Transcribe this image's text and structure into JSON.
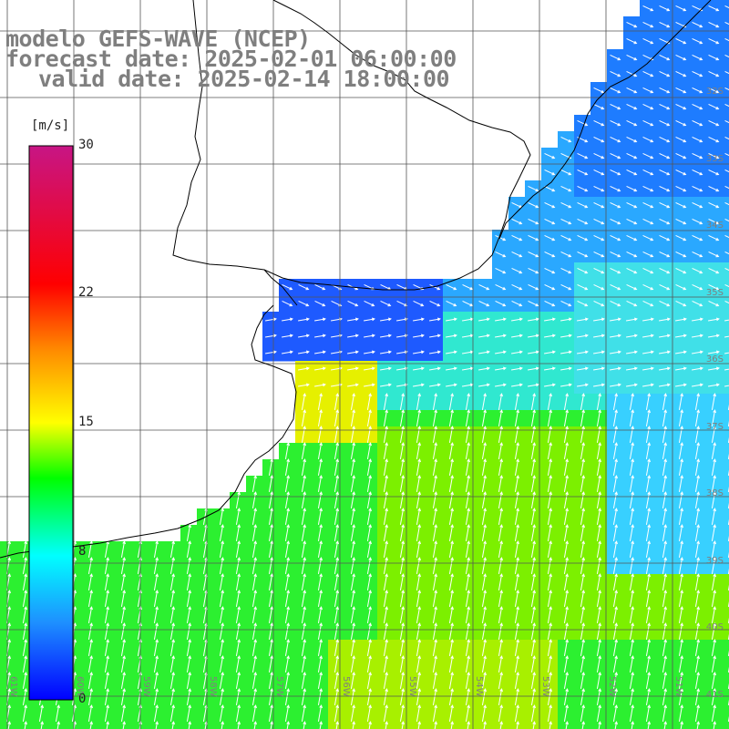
{
  "title": {
    "line1": "modelo GEFS-WAVE (NCEP)",
    "line2": "forecast date: 2025-02-01 06:00:00",
    "line3": "valid date: 2025-02-14 18:00:00"
  },
  "colorbar": {
    "unit": "[m/s]",
    "ticks": [
      {
        "label": "30",
        "value": 30
      },
      {
        "label": "22",
        "value": 22
      },
      {
        "label": "15",
        "value": 15
      },
      {
        "label": "8",
        "value": 8
      },
      {
        "label": "0",
        "value": 0
      }
    ],
    "colors": [
      "#0000ff",
      "#1e90ff",
      "#00ffff",
      "#00ff00",
      "#ffff00",
      "#ff8c00",
      "#ff0000",
      "#c71585"
    ]
  },
  "lat_labels": [
    "32S",
    "33S",
    "34S",
    "35S",
    "36S",
    "37S",
    "38S",
    "39S",
    "40S",
    "41S"
  ],
  "lon_labels": [
    "61W",
    "60W",
    "59W",
    "58W",
    "57W",
    "56W",
    "55W",
    "54W",
    "53W",
    "52W",
    "51W"
  ],
  "colors": {
    "land": "#ffffff",
    "grid": "#555555",
    "coast": "#000000",
    "arrow": "#ffffff",
    "title": "#7f7f7f"
  }
}
